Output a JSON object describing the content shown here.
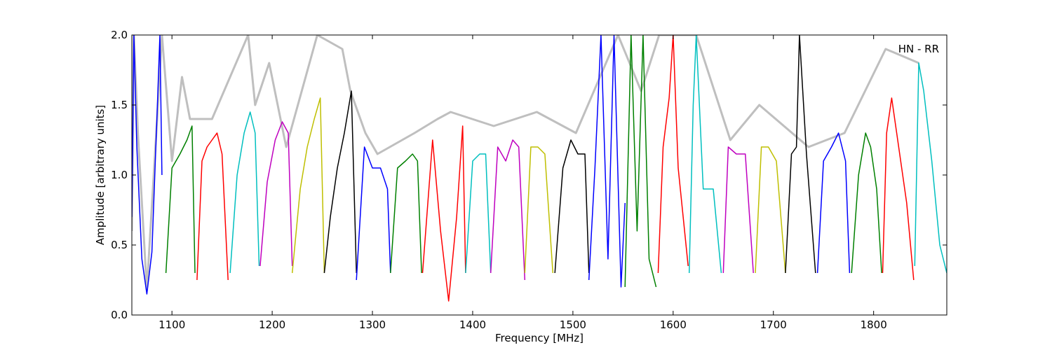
{
  "chart_data": {
    "type": "line",
    "title": "",
    "xlabel": "Frequency [MHz]",
    "ylabel": "Amplitude [arbitrary units]",
    "xlim": [
      1060,
      1873
    ],
    "ylim": [
      0.0,
      2.0
    ],
    "x_ticks": [
      1100,
      1200,
      1300,
      1400,
      1500,
      1600,
      1700,
      1800
    ],
    "y_ticks": [
      0.0,
      0.5,
      1.0,
      1.5,
      2.0
    ],
    "y_tick_labels": [
      "0.0",
      "0.5",
      "1.0",
      "1.5",
      "2.0"
    ],
    "grid": false,
    "annotation": "HN - RR",
    "annotation_position": "top-right",
    "background_series_color": "#bfbfbf",
    "band_color_cycle": [
      "#0000ff",
      "#008000",
      "#ff0000",
      "#00bfbf",
      "#bf00bf",
      "#bfbf00",
      "#000000"
    ],
    "background_series": [
      {
        "x": 1060,
        "y": 0.6
      },
      {
        "x": 1062,
        "y": 2.0
      },
      {
        "x": 1066,
        "y": 1.3
      },
      {
        "x": 1075,
        "y": 0.18
      },
      {
        "x": 1086,
        "y": 1.5
      },
      {
        "x": 1090,
        "y": 2.0
      },
      {
        "x": 1100,
        "y": 1.1
      },
      {
        "x": 1110,
        "y": 1.7
      },
      {
        "x": 1118,
        "y": 1.4
      },
      {
        "x": 1140,
        "y": 1.4
      },
      {
        "x": 1176,
        "y": 2.0
      },
      {
        "x": 1183,
        "y": 1.5
      },
      {
        "x": 1197,
        "y": 1.8
      },
      {
        "x": 1214,
        "y": 1.2
      },
      {
        "x": 1245,
        "y": 2.0
      },
      {
        "x": 1270,
        "y": 1.9
      },
      {
        "x": 1278,
        "y": 1.6
      },
      {
        "x": 1293,
        "y": 1.3
      },
      {
        "x": 1305,
        "y": 1.15
      },
      {
        "x": 1342,
        "y": 1.3
      },
      {
        "x": 1365,
        "y": 1.4
      },
      {
        "x": 1378,
        "y": 1.45
      },
      {
        "x": 1421,
        "y": 1.35
      },
      {
        "x": 1464,
        "y": 1.45
      },
      {
        "x": 1503,
        "y": 1.3
      },
      {
        "x": 1518,
        "y": 1.55
      },
      {
        "x": 1545,
        "y": 2.0
      },
      {
        "x": 1568,
        "y": 1.6
      },
      {
        "x": 1586,
        "y": 2.0
      },
      {
        "x": 1623,
        "y": 2.0
      },
      {
        "x": 1657,
        "y": 1.25
      },
      {
        "x": 1686,
        "y": 1.5
      },
      {
        "x": 1735,
        "y": 1.2
      },
      {
        "x": 1771,
        "y": 1.3
      },
      {
        "x": 1812,
        "y": 1.9
      },
      {
        "x": 1845,
        "y": 1.8
      }
    ],
    "band_series": [
      {
        "color": "#0000ff",
        "x": [
          1060,
          1062,
          1065,
          1070,
          1075,
          1080,
          1085,
          1088,
          1090
        ],
        "y": [
          0.7,
          2.0,
          1.2,
          0.4,
          0.15,
          0.45,
          1.4,
          2.0,
          1.0
        ]
      },
      {
        "color": "#008000",
        "x": [
          1094,
          1100,
          1108,
          1115,
          1120,
          1123
        ],
        "y": [
          0.3,
          1.05,
          1.15,
          1.25,
          1.35,
          0.3
        ]
      },
      {
        "color": "#ff0000",
        "x": [
          1125,
          1130,
          1135,
          1140,
          1145,
          1150,
          1156
        ],
        "y": [
          0.25,
          1.1,
          1.2,
          1.25,
          1.3,
          1.15,
          0.25
        ]
      },
      {
        "color": "#00bfbf",
        "x": [
          1158,
          1165,
          1172,
          1178,
          1183,
          1187
        ],
        "y": [
          0.3,
          1.0,
          1.3,
          1.45,
          1.3,
          0.35
        ]
      },
      {
        "color": "#bf00bf",
        "x": [
          1188,
          1195,
          1203,
          1210,
          1216,
          1220
        ],
        "y": [
          0.35,
          0.95,
          1.25,
          1.38,
          1.3,
          0.35
        ]
      },
      {
        "color": "#bfbf00",
        "x": [
          1220,
          1228,
          1235,
          1242,
          1248,
          1252
        ],
        "y": [
          0.3,
          0.9,
          1.2,
          1.4,
          1.55,
          0.3
        ]
      },
      {
        "color": "#000000",
        "x": [
          1252,
          1258,
          1265,
          1272,
          1279,
          1284
        ],
        "y": [
          0.3,
          0.7,
          1.05,
          1.3,
          1.6,
          0.3
        ]
      },
      {
        "color": "#0000ff",
        "x": [
          1284,
          1292,
          1300,
          1308,
          1315,
          1318
        ],
        "y": [
          0.25,
          1.2,
          1.05,
          1.05,
          0.9,
          0.3
        ]
      },
      {
        "color": "#008000",
        "x": [
          1318,
          1325,
          1333,
          1340,
          1345,
          1349
        ],
        "y": [
          0.3,
          1.05,
          1.1,
          1.15,
          1.1,
          0.3
        ]
      },
      {
        "color": "#ff0000",
        "x": [
          1350,
          1360,
          1368,
          1376,
          1384,
          1390,
          1393
        ],
        "y": [
          0.3,
          1.25,
          0.6,
          0.1,
          0.7,
          1.35,
          0.3
        ]
      },
      {
        "color": "#00bfbf",
        "x": [
          1393,
          1400,
          1407,
          1413,
          1418
        ],
        "y": [
          0.3,
          1.1,
          1.15,
          1.15,
          0.3
        ]
      },
      {
        "color": "#bf00bf",
        "x": [
          1418,
          1425,
          1433,
          1440,
          1446,
          1452
        ],
        "y": [
          0.3,
          1.2,
          1.1,
          1.25,
          1.2,
          0.25
        ]
      },
      {
        "color": "#bfbf00",
        "x": [
          1452,
          1458,
          1465,
          1472,
          1480
        ],
        "y": [
          0.3,
          1.2,
          1.2,
          1.15,
          0.3
        ]
      },
      {
        "color": "#000000",
        "x": [
          1482,
          1490,
          1498,
          1505,
          1512,
          1516
        ],
        "y": [
          0.3,
          1.05,
          1.25,
          1.15,
          1.15,
          0.3
        ]
      },
      {
        "color": "#0000ff",
        "x": [
          1516,
          1522,
          1528,
          1535,
          1541,
          1548,
          1552
        ],
        "y": [
          0.25,
          1.05,
          2.0,
          0.4,
          2.0,
          0.2,
          0.8
        ]
      },
      {
        "color": "#008000",
        "x": [
          1552,
          1558,
          1564,
          1570,
          1576,
          1583
        ],
        "y": [
          0.2,
          2.0,
          0.6,
          2.0,
          0.4,
          0.2
        ]
      },
      {
        "color": "#ff0000",
        "x": [
          1585,
          1590,
          1596,
          1600,
          1605,
          1615
        ],
        "y": [
          0.3,
          1.2,
          1.55,
          2.0,
          1.05,
          0.35
        ]
      },
      {
        "color": "#00bfbf",
        "x": [
          1616,
          1620,
          1623,
          1630,
          1640,
          1648
        ],
        "y": [
          0.3,
          1.5,
          2.0,
          0.9,
          0.9,
          0.3
        ]
      },
      {
        "color": "#bf00bf",
        "x": [
          1650,
          1655,
          1663,
          1672,
          1680
        ],
        "y": [
          0.3,
          1.2,
          1.15,
          1.15,
          0.3
        ]
      },
      {
        "color": "#bfbf00",
        "x": [
          1682,
          1688,
          1695,
          1703,
          1712
        ],
        "y": [
          0.3,
          1.2,
          1.2,
          1.1,
          0.3
        ]
      },
      {
        "color": "#000000",
        "x": [
          1712,
          1718,
          1723,
          1726,
          1733,
          1742
        ],
        "y": [
          0.3,
          1.15,
          1.2,
          2.0,
          1.15,
          0.3
        ]
      },
      {
        "color": "#0000ff",
        "x": [
          1744,
          1750,
          1758,
          1765,
          1772,
          1776
        ],
        "y": [
          0.3,
          1.1,
          1.2,
          1.3,
          1.1,
          0.3
        ]
      },
      {
        "color": "#008000",
        "x": [
          1778,
          1785,
          1792,
          1797,
          1803,
          1808
        ],
        "y": [
          0.3,
          1.0,
          1.3,
          1.2,
          0.9,
          0.3
        ]
      },
      {
        "color": "#ff0000",
        "x": [
          1809,
          1813,
          1818,
          1825,
          1833,
          1840
        ],
        "y": [
          0.3,
          1.3,
          1.55,
          1.2,
          0.8,
          0.25
        ]
      },
      {
        "color": "#00bfbf",
        "x": [
          1841,
          1845,
          1850,
          1858,
          1866,
          1873
        ],
        "y": [
          0.35,
          1.8,
          1.6,
          1.1,
          0.5,
          0.3
        ]
      }
    ]
  }
}
